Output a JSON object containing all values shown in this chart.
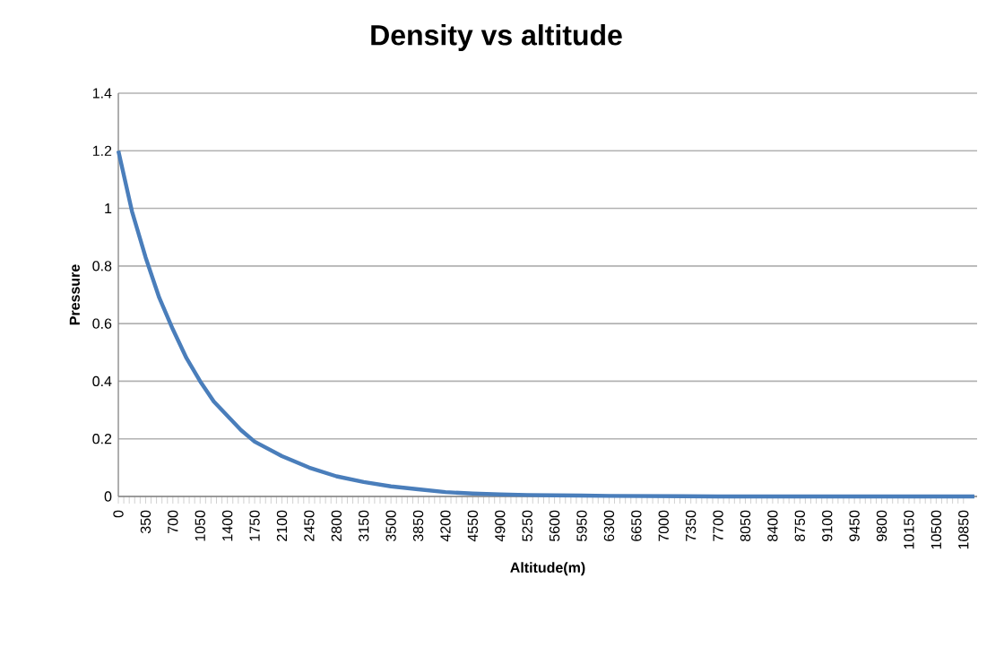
{
  "chart_data": {
    "type": "line",
    "title": "Density vs altitude",
    "xlabel": "Altitude(m)",
    "ylabel": "Pressure",
    "x": [
      0,
      175,
      350,
      525,
      700,
      875,
      1050,
      1225,
      1400,
      1575,
      1750,
      2100,
      2450,
      2800,
      3150,
      3500,
      3850,
      4200,
      4550,
      4900,
      5250,
      5600,
      5950,
      6300,
      7000,
      7700,
      8400,
      9100,
      9800,
      10500,
      10990
    ],
    "series": [
      {
        "color": "#4a7ebb",
        "values": [
          1.2,
          0.99,
          0.83,
          0.69,
          0.58,
          0.48,
          0.4,
          0.33,
          0.28,
          0.23,
          0.19,
          0.14,
          0.1,
          0.07,
          0.05,
          0.035,
          0.025,
          0.015,
          0.01,
          0.007,
          0.005,
          0.004,
          0.003,
          0.002,
          0.001,
          0,
          0,
          0,
          0,
          0,
          0
        ]
      }
    ],
    "xlim": [
      0,
      11025
    ],
    "xticks": [
      0,
      350,
      700,
      1050,
      1400,
      1750,
      2100,
      2450,
      2800,
      3150,
      3500,
      3850,
      4200,
      4550,
      4900,
      5250,
      5600,
      5950,
      6300,
      6650,
      7000,
      7350,
      7700,
      8050,
      8400,
      8750,
      9100,
      9450,
      9800,
      10150,
      10500,
      10850
    ],
    "ylim": [
      0,
      1.4
    ],
    "yticks": [
      0,
      0.2,
      0.4,
      0.6,
      0.8,
      1,
      1.2,
      1.4
    ],
    "grid": "y",
    "legend": false,
    "marker": "none",
    "line_style": "solid"
  }
}
